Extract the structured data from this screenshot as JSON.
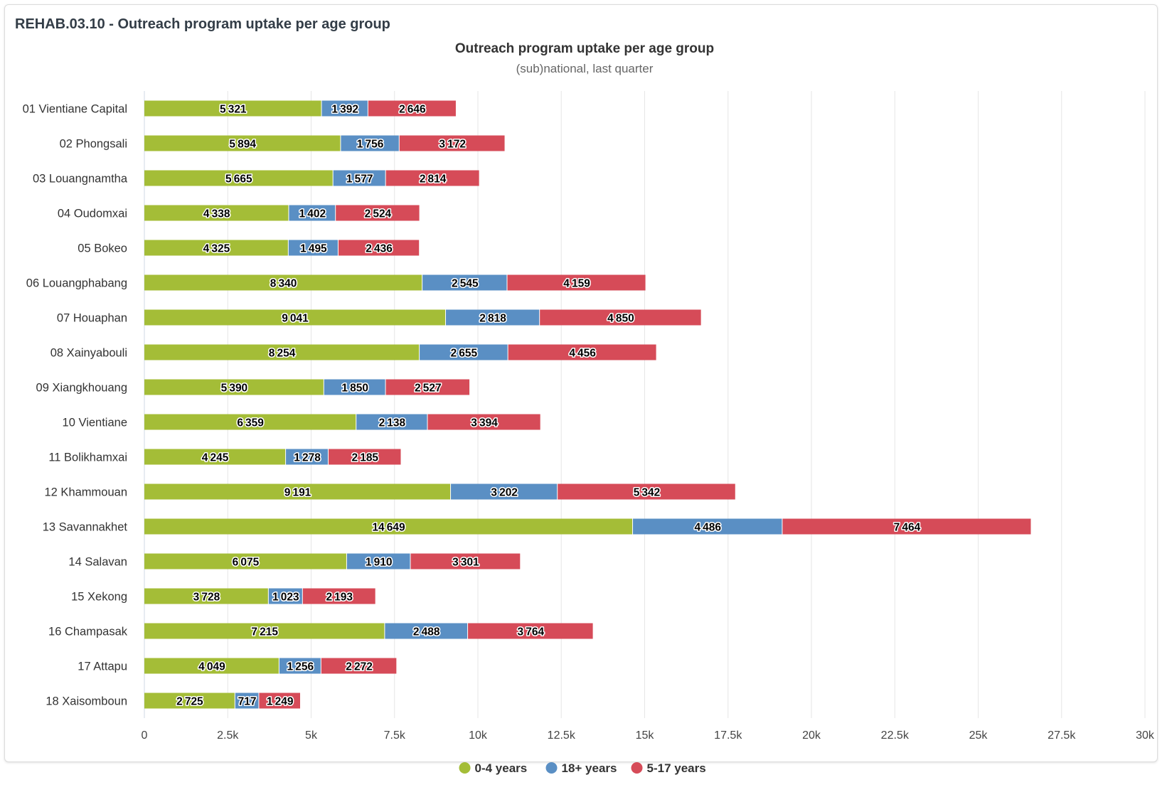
{
  "panel": {
    "title": "REHAB.03.10 - Outreach program uptake per age group"
  },
  "chart_data": {
    "type": "bar",
    "orientation": "horizontal",
    "stacked": true,
    "title": "Outreach program uptake per age group",
    "subtitle": "(sub)national, last quarter",
    "categories": [
      "01 Vientiane Capital",
      "02 Phongsali",
      "03 Louangnamtha",
      "04 Oudomxai",
      "05 Bokeo",
      "06 Louangphabang",
      "07 Houaphan",
      "08 Xainyabouli",
      "09 Xiangkhouang",
      "10 Vientiane",
      "11 Bolikhamxai",
      "12 Khammouan",
      "13 Savannakhet",
      "14 Salavan",
      "15 Xekong",
      "16 Champasak",
      "17 Attapu",
      "18 Xaisomboun"
    ],
    "series": [
      {
        "name": "0-4 years",
        "color": "#a4bd37",
        "values": [
          5321,
          5894,
          5665,
          4338,
          4325,
          8340,
          9041,
          8254,
          5390,
          6359,
          4245,
          9191,
          14649,
          6075,
          3728,
          7215,
          4049,
          2725
        ]
      },
      {
        "name": "18+ years",
        "color": "#5a8fc4",
        "values": [
          1392,
          1756,
          1577,
          1402,
          1495,
          2545,
          2818,
          2655,
          1850,
          2138,
          1278,
          3202,
          4486,
          1910,
          1023,
          2488,
          1256,
          717
        ]
      },
      {
        "name": "5-17 years",
        "color": "#d64b58",
        "values": [
          2646,
          3172,
          2814,
          2524,
          2436,
          4159,
          4850,
          4456,
          2527,
          3394,
          2185,
          5342,
          7464,
          3301,
          2193,
          3764,
          2272,
          1249
        ]
      }
    ],
    "xlim": [
      0,
      30000
    ],
    "ticks": [
      0,
      2500,
      5000,
      7500,
      10000,
      12500,
      15000,
      17500,
      20000,
      22500,
      25000,
      27500,
      30000
    ],
    "tick_labels": [
      "0",
      "2.5k",
      "5k",
      "7.5k",
      "10k",
      "12.5k",
      "15k",
      "17.5k",
      "20k",
      "22.5k",
      "25k",
      "27.5k",
      "30k"
    ],
    "grid": "vertical",
    "legend_position": "bottom-center"
  }
}
